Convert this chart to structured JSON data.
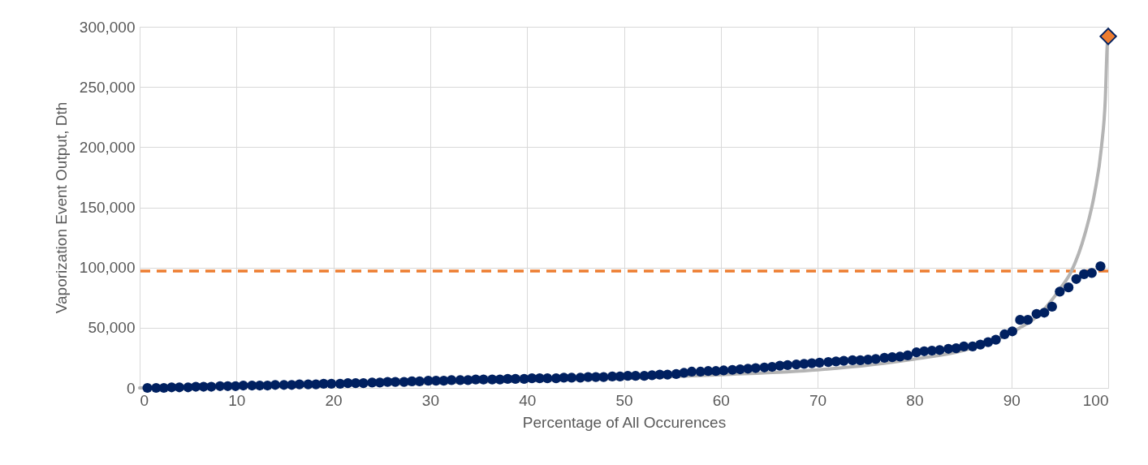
{
  "chart_data": {
    "type": "scatter",
    "xlabel": "Percentage of All Occurences",
    "ylabel": "Vaporization Event Output, Dth",
    "xlim": [
      0,
      100
    ],
    "xticks": [
      0,
      10,
      20,
      30,
      40,
      50,
      60,
      70,
      80,
      90,
      100
    ],
    "ylim": [
      0,
      300000
    ],
    "yticks": [
      0,
      {
        "value": 50000,
        "label": "50,000"
      },
      {
        "value": 100000,
        "label": "100,000"
      },
      {
        "value": 150000,
        "label": "150,000"
      },
      {
        "value": 200000,
        "label": "200,000"
      },
      {
        "value": 250000,
        "label": "250,000"
      },
      {
        "value": 300000,
        "label": "300,000"
      }
    ],
    "grid": true,
    "ref_lines": [
      {
        "axis": "y",
        "value": 97000,
        "color": "#ed7d31",
        "line_style": "dashed"
      }
    ],
    "series": [
      {
        "type": "line",
        "color": "#b4b4b4",
        "marker": "none",
        "x": [
          0,
          10,
          20,
          30,
          40,
          50,
          60,
          70,
          80,
          85,
          90,
          93,
          95,
          96.2,
          97.6,
          98.6,
          99.3,
          99.7,
          99.9,
          100
        ],
        "values": [
          0,
          1000,
          2500,
          4000,
          6000,
          8000,
          11000,
          15000,
          24000,
          31000,
          46000,
          62000,
          82000,
          97000,
          128000,
          162000,
          200000,
          240000,
          285000,
          292000
        ]
      },
      {
        "color": "#002060",
        "marker": "circle",
        "x": [
          0.8,
          1.7,
          2.5,
          3.3,
          4.1,
          5.0,
          5.8,
          6.6,
          7.4,
          8.3,
          9.1,
          9.9,
          10.7,
          11.6,
          12.4,
          13.2,
          14.0,
          14.9,
          15.7,
          16.5,
          17.4,
          18.2,
          19.0,
          19.8,
          20.7,
          21.5,
          22.3,
          23.1,
          24.0,
          24.8,
          25.6,
          26.4,
          27.3,
          28.1,
          28.9,
          29.8,
          30.6,
          31.4,
          32.2,
          33.1,
          33.9,
          34.7,
          35.5,
          36.4,
          37.2,
          38.0,
          38.8,
          39.7,
          40.5,
          41.3,
          42.1,
          43.0,
          43.8,
          44.6,
          45.5,
          46.3,
          47.1,
          47.9,
          48.8,
          49.6,
          50.4,
          51.2,
          52.1,
          52.9,
          53.7,
          54.5,
          55.4,
          56.2,
          57.0,
          57.9,
          58.7,
          59.5,
          60.3,
          61.2,
          62.0,
          62.8,
          63.6,
          64.5,
          65.3,
          66.1,
          66.9,
          67.8,
          68.6,
          69.4,
          70.2,
          71.1,
          71.9,
          72.7,
          73.6,
          74.4,
          75.2,
          76.0,
          76.9,
          77.7,
          78.5,
          79.3,
          80.2,
          81.0,
          81.8,
          82.6,
          83.5,
          84.3,
          85.1,
          86.0,
          86.8,
          87.6,
          88.4,
          89.3,
          90.1,
          90.9,
          91.7,
          92.6,
          93.4,
          94.2,
          95.0,
          95.9,
          96.7,
          97.5,
          98.3,
          99.2
        ],
        "values": [
          0,
          0,
          0,
          500,
          500,
          500,
          1000,
          1000,
          1000,
          1500,
          1500,
          1500,
          2000,
          2000,
          2000,
          2000,
          2500,
          2500,
          2500,
          3000,
          3000,
          3000,
          3500,
          3500,
          3500,
          4000,
          4000,
          4000,
          4500,
          4500,
          5000,
          5000,
          5000,
          5500,
          5500,
          6000,
          6000,
          6000,
          6500,
          6500,
          6500,
          7000,
          7000,
          7000,
          7000,
          7500,
          7500,
          7500,
          8000,
          8000,
          8000,
          8000,
          8500,
          8500,
          8500,
          9000,
          9000,
          9000,
          9500,
          9500,
          10000,
          10000,
          10000,
          10500,
          11000,
          11000,
          11500,
          12500,
          13500,
          13500,
          14000,
          14000,
          14500,
          15000,
          15500,
          16000,
          16500,
          17000,
          17500,
          18500,
          19000,
          19500,
          20000,
          20500,
          21000,
          21500,
          22000,
          22500,
          23000,
          23000,
          23500,
          24000,
          25000,
          25500,
          26000,
          27000,
          29500,
          30500,
          31000,
          31500,
          32500,
          33000,
          34500,
          34500,
          36000,
          38000,
          40000,
          44500,
          47000,
          56500,
          56500,
          61500,
          62500,
          67500,
          80000,
          83500,
          90500,
          94500,
          95500,
          101000
        ]
      },
      {
        "color": "#ed7d31",
        "marker": "diamond",
        "x": [
          100
        ],
        "values": [
          292000
        ]
      }
    ]
  }
}
